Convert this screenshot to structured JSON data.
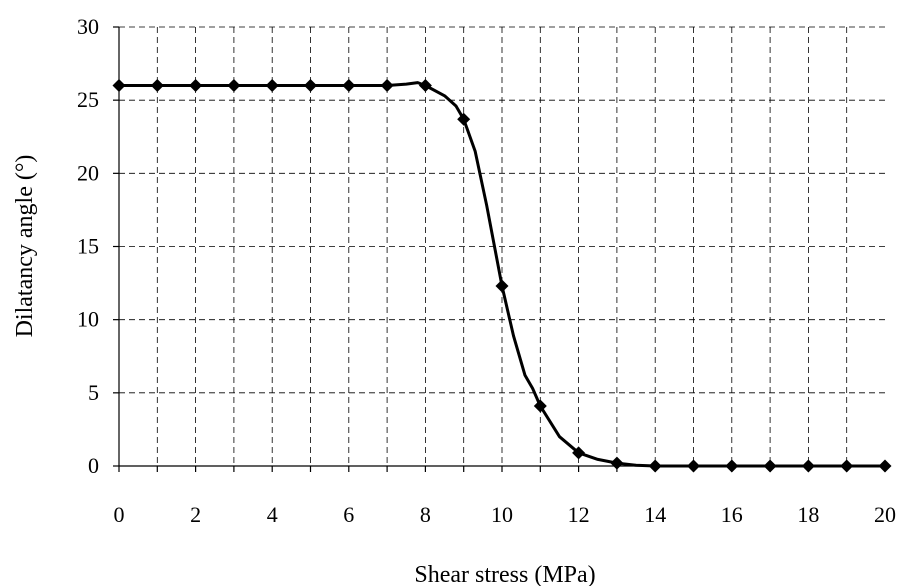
{
  "chart_data": {
    "type": "line",
    "title": "",
    "xlabel": "Shear stress (MPa)",
    "ylabel": "Dilatancy angle (°)",
    "xlim": [
      0,
      20
    ],
    "ylim": [
      0,
      30
    ],
    "xticks": [
      0,
      2,
      4,
      6,
      8,
      10,
      12,
      14,
      16,
      18,
      20
    ],
    "yticks": [
      0,
      5,
      10,
      15,
      20,
      25,
      30
    ],
    "grid": "dashed",
    "legend": "none",
    "marker": "diamond",
    "line_color": "#000000",
    "series": [
      {
        "markers": {
          "x": [
            0,
            1,
            2,
            3,
            4,
            5,
            6,
            7,
            8,
            9,
            10,
            11,
            12,
            13,
            14,
            15,
            16,
            17,
            18,
            19,
            20
          ],
          "y": [
            26,
            26,
            26,
            26,
            26,
            26,
            26,
            26,
            26,
            23.7,
            12.3,
            4.1,
            0.9,
            0.2,
            0,
            0,
            0,
            0,
            0,
            0,
            0
          ]
        },
        "curve": {
          "x": [
            0,
            1,
            2,
            3,
            4,
            5,
            6,
            7,
            7.5,
            7.8,
            8,
            8.5,
            8.8,
            9,
            9.3,
            9.6,
            10,
            10.3,
            10.6,
            10.8,
            11,
            11.5,
            12,
            12.5,
            13,
            13.5,
            14,
            15,
            16,
            17,
            18,
            19,
            20
          ],
          "y": [
            26,
            26,
            26,
            26,
            26,
            26,
            26,
            26,
            26.1,
            26.2,
            26,
            25.3,
            24.6,
            23.7,
            21.5,
            17.8,
            12.3,
            8.9,
            6.2,
            5.3,
            4.1,
            2.0,
            0.9,
            0.45,
            0.2,
            0.05,
            0,
            0,
            0,
            0,
            0,
            0,
            0
          ]
        }
      }
    ]
  }
}
